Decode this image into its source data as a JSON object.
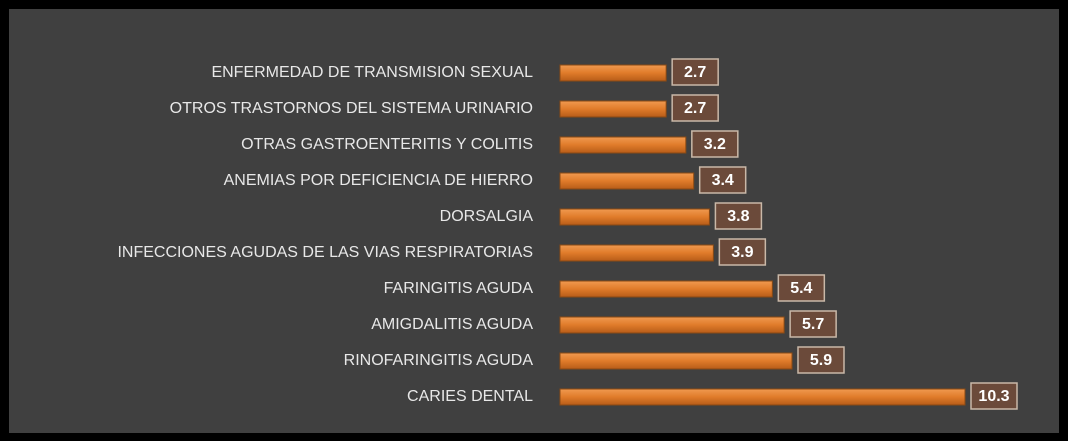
{
  "chart_data": {
    "type": "bar",
    "orientation": "horizontal",
    "categories": [
      "ENFERMEDAD DE TRANSMISION SEXUAL",
      "OTROS TRASTORNOS DEL SISTEMA URINARIO",
      "OTRAS GASTROENTERITIS Y COLITIS",
      "ANEMIAS POR DEFICIENCIA DE HIERRO",
      "DORSALGIA",
      "INFECCIONES AGUDAS DE LAS VIAS RESPIRATORIAS",
      "FARINGITIS AGUDA",
      "AMIGDALITIS AGUDA",
      "RINOFARINGITIS AGUDA",
      "CARIES DENTAL"
    ],
    "values": [
      2.7,
      2.7,
      3.2,
      3.4,
      3.8,
      3.9,
      5.4,
      5.7,
      5.9,
      10.3
    ],
    "color": "#e07b2a"
  }
}
